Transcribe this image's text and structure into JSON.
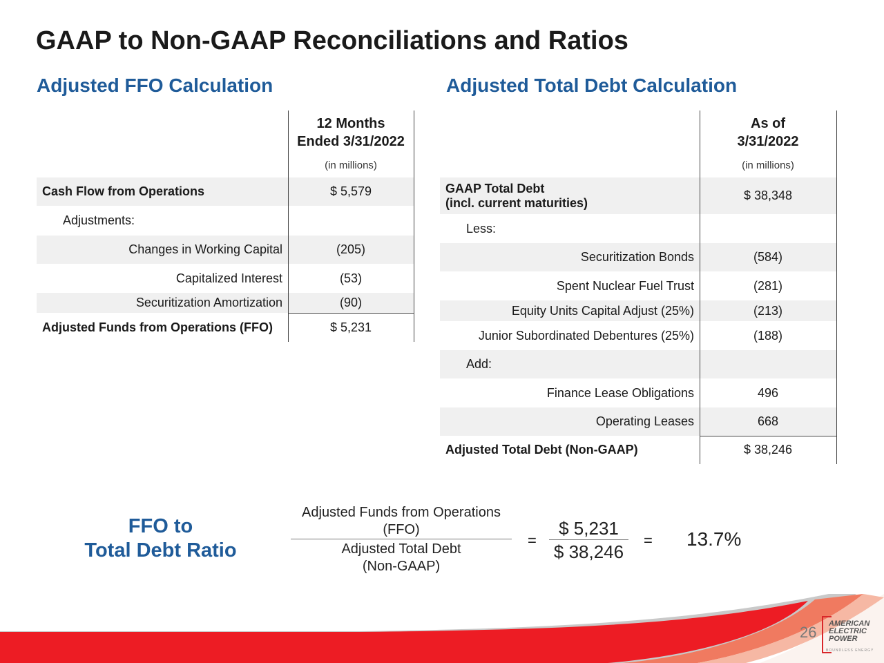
{
  "title": "GAAP to Non-GAAP Reconciliations and Ratios",
  "ffo": {
    "heading": "Adjusted FFO Calculation",
    "col_header": [
      "12 Months",
      "Ended 3/31/2022"
    ],
    "units": "(in millions)",
    "rows": [
      {
        "label": "Cash Flow from Operations",
        "value": "$ 5,579",
        "style": "bold"
      },
      {
        "label": "Adjustments:",
        "value": "",
        "style": "indent"
      },
      {
        "label": "Changes in Working Capital",
        "value": "(205)",
        "style": "right"
      },
      {
        "label": "Capitalized Interest",
        "value": "(53)",
        "style": "right"
      },
      {
        "label": "Securitization Amortization",
        "value": "(90)",
        "style": "right"
      },
      {
        "label": "Adjusted Funds from Operations (FFO)",
        "value": "$ 5,231",
        "style": "bold"
      }
    ]
  },
  "debt": {
    "heading": "Adjusted Total Debt Calculation",
    "col_header": [
      "As of",
      "3/31/2022"
    ],
    "units": "(in millions)",
    "rows": [
      {
        "label": "GAAP Total Debt",
        "label2": "(incl. current maturities)",
        "value": "$ 38,348",
        "style": "bold"
      },
      {
        "label": "Less:",
        "value": "",
        "style": "indent"
      },
      {
        "label": "Securitization Bonds",
        "value": "(584)",
        "style": "right"
      },
      {
        "label": "Spent Nuclear Fuel Trust",
        "value": "(281)",
        "style": "right"
      },
      {
        "label": "Equity Units Capital Adjust (25%)",
        "value": "(213)",
        "style": "right"
      },
      {
        "label": "Junior Subordinated Debentures (25%)",
        "value": "(188)",
        "style": "right"
      },
      {
        "label": "Add:",
        "value": "",
        "style": "indent"
      },
      {
        "label": "Finance Lease Obligations",
        "value": "496",
        "style": "right"
      },
      {
        "label": "Operating Leases",
        "value": "668",
        "style": "right"
      },
      {
        "label": "Adjusted Total Debt (Non-GAAP)",
        "value": "$ 38,246",
        "style": "bold"
      }
    ]
  },
  "ratio": {
    "label": [
      "FFO to",
      "Total Debt Ratio"
    ],
    "numerator": [
      "Adjusted Funds from Operations",
      "(FFO)"
    ],
    "denominator": [
      "Adjusted Total Debt",
      "(Non-GAAP)"
    ],
    "eq": "=",
    "num_value": "$ 5,231",
    "den_value": "$ 38,246",
    "result": "13.7%"
  },
  "footer": {
    "page": "26",
    "logo": [
      "AMERICAN",
      "ELECTRIC",
      "POWER"
    ],
    "tagline": "BOUNDLESS ENERGY"
  },
  "colors": {
    "heading": "#1f5b99",
    "band": "#ed1c24"
  }
}
